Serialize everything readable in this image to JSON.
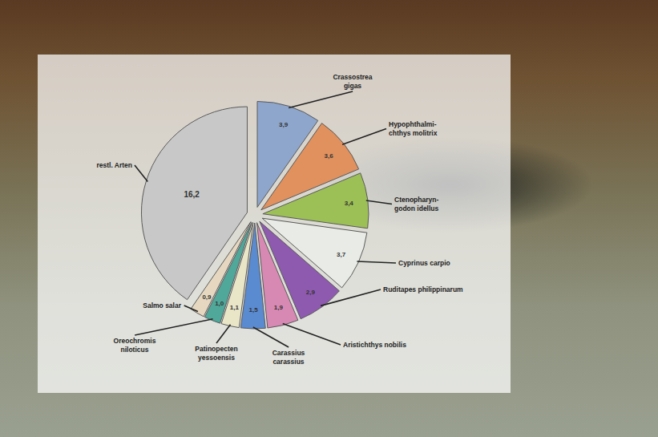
{
  "chart_data": {
    "type": "pie",
    "categories": [
      "Crassostrea\ngigas",
      "Hypophthalmi-\nchthys molitrix",
      "Ctenopharyn-\ngodon idellus",
      "Cyprinus carpio",
      "Ruditapes philippinarum",
      "Aristichthys nobilis",
      "Carassius\ncarassius",
      "Patinopecten\nyessoensis",
      "Oreochromis\nniloticus",
      "Salmo salar",
      "restl. Arten"
    ],
    "values": [
      3.9,
      3.6,
      3.4,
      3.7,
      2.9,
      1.9,
      1.5,
      1.1,
      1.0,
      0.9,
      16.2
    ],
    "value_labels": [
      "3,9",
      "3,6",
      "3,4",
      "3,7",
      "2,9",
      "1,9",
      "1,5",
      "1,1",
      "1,0",
      "0,9",
      "16,2"
    ],
    "colors": [
      "#8ea6cc",
      "#e0915e",
      "#9cc055",
      "#e8ebe6",
      "#8e5ab0",
      "#d789b3",
      "#5a8ad0",
      "#e9e6c8",
      "#4fa89a",
      "#e6d8c0",
      "#c8c8c8"
    ],
    "data_labels": true
  }
}
